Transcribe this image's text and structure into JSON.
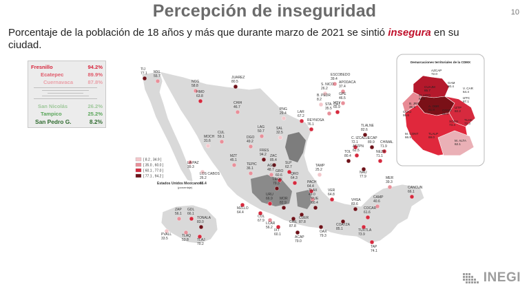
{
  "title": "Percepción de inseguridad",
  "page_number": "10",
  "subtitle": {
    "before": "Porcentaje de la población de 18 años y más que durante marzo de 2021 se sintió",
    "highlight": "insegura",
    "after": "en su",
    "line2": "ciudad."
  },
  "ranking": {
    "top": [
      {
        "city": "Fresnillo",
        "value": "94.2%",
        "color": "#d7263d"
      },
      {
        "city": "Ecatepec",
        "value": "89.9%",
        "color": "#e05a6a"
      },
      {
        "city": "Cuernavaca",
        "value": "87.8%",
        "color": "#eaa0a8"
      }
    ],
    "bottom": [
      {
        "city": "San Nicolás",
        "value": "26.2%",
        "color": "#9dc79a"
      },
      {
        "city": "Tampico",
        "value": "25.2%",
        "color": "#5aa65a"
      },
      {
        "city": "San Pedro G.",
        "value": "8.2%",
        "color": "#2f6b2f"
      }
    ]
  },
  "legend": {
    "ranges": [
      {
        "label": "[ 8.2 , 34.9 ]",
        "color": "#f3c7cb"
      },
      {
        "label": "[ 35.0 , 60.0 ]",
        "color": "#e8909a"
      },
      {
        "label": "[ 60.1 , 77.0 ]",
        "color": "#d62a3e"
      },
      {
        "label": "[ 77.1 , 94.2 ]",
        "color": "#6e1219"
      }
    ],
    "national_label": "Estados Unidos Mexicanos:",
    "national_value": "66.4",
    "national_unit": "(porcentaje)"
  },
  "cities": [
    {
      "name": "TIJ",
      "value": "77.1",
      "cls": 4
    },
    {
      "name": "MXL",
      "value": "55.7",
      "cls": 2
    },
    {
      "name": "NOG",
      "value": "58.8",
      "cls": 2
    },
    {
      "name": "HMO",
      "value": "63.8",
      "cls": 3
    },
    {
      "name": "JUAREZ",
      "value": "80.5",
      "cls": 4
    },
    {
      "name": "CHIH",
      "value": "46.7",
      "cls": 2
    },
    {
      "name": "LA PAZ",
      "value": "39.3",
      "cls": 2
    },
    {
      "name": "LOS CABOS",
      "value": "26.2",
      "cls": 1
    },
    {
      "name": "CUL",
      "value": "59.1",
      "cls": 2
    },
    {
      "name": "MOCH",
      "value": "31.6",
      "cls": 1
    },
    {
      "name": "MZT",
      "value": "45.1",
      "cls": 2
    },
    {
      "name": "DGO",
      "value": "49.2",
      "cls": 2
    },
    {
      "name": "LAG",
      "value": "50.7",
      "cls": 2
    },
    {
      "name": "FRES",
      "value": "94.2",
      "cls": 4
    },
    {
      "name": "ZAC",
      "value": "85.4",
      "cls": 4
    },
    {
      "name": "SAL",
      "value": "32.5",
      "cls": 1
    },
    {
      "name": "PNG",
      "value": "29.4",
      "cls": 1
    },
    {
      "name": "LAR",
      "value": "67.2",
      "cls": 3
    },
    {
      "name": "REYNOSA",
      "value": "76.1",
      "cls": 3
    },
    {
      "name": "ESCOBEDO",
      "value": "39.4",
      "cls": 2
    },
    {
      "name": "S. NICO",
      "value": "26.2",
      "cls": 1
    },
    {
      "name": "APODACA",
      "value": "37.4",
      "cls": 2
    },
    {
      "name": "B. PEDR",
      "value": "8.2",
      "cls": 1
    },
    {
      "name": "GPE",
      "value": "46.5",
      "cls": 2
    },
    {
      "name": "MTY",
      "value": "65.9",
      "cls": 3
    },
    {
      "name": "STA. CAT",
      "value": "35.5",
      "cls": 2
    },
    {
      "name": "TEPIC",
      "value": "36.1",
      "cls": 2
    },
    {
      "name": "AGS",
      "value": "48.7",
      "cls": 2
    },
    {
      "name": "SLP",
      "value": "62.7",
      "cls": 3
    },
    {
      "name": "TAMP",
      "value": "25.2",
      "cls": 1
    },
    {
      "name": "GRO",
      "value": "60.6",
      "cls": 3
    },
    {
      "name": "QRO",
      "value": "64.3",
      "cls": 3
    },
    {
      "name": "LEON",
      "value": "79.3",
      "cls": 4
    },
    {
      "name": "PACH",
      "value": "64.4",
      "cls": 3
    },
    {
      "name": "TLAX",
      "value": "49.0",
      "cls": 2
    },
    {
      "name": "VER",
      "value": "64.8",
      "cls": 3
    },
    {
      "name": "PUE",
      "value": "80.4",
      "cls": 4
    },
    {
      "name": "MZLLO",
      "value": "64.4",
      "cls": 3
    },
    {
      "name": "COL",
      "value": "67.9",
      "cls": 3
    },
    {
      "name": "URU",
      "value": "66.9",
      "cls": 3
    },
    {
      "name": "MOR",
      "value": "82.9",
      "cls": 4
    },
    {
      "name": "LCAR",
      "value": "56.2",
      "cls": 2
    },
    {
      "name": "IXT",
      "value": "60.1",
      "cls": 3
    },
    {
      "name": "CHIL",
      "value": "87.8",
      "cls": 4
    },
    {
      "name": "CUER",
      "value": "87.8",
      "cls": 4
    },
    {
      "name": "ACAP",
      "value": "79.0",
      "cls": 4
    },
    {
      "name": "OAX",
      "value": "79.3",
      "cls": 4
    },
    {
      "name": "VHSA",
      "value": "83.6",
      "cls": 4
    },
    {
      "name": "COATZA",
      "value": "85.1",
      "cls": 4
    },
    {
      "name": "TUXTLA",
      "value": "73.9",
      "cls": 3
    },
    {
      "name": "TAP",
      "value": "74.1",
      "cls": 3
    },
    {
      "name": "CAMP",
      "value": "40.6",
      "cls": 2
    },
    {
      "name": "COCAR",
      "value": "61.6",
      "cls": 3
    },
    {
      "name": "MER",
      "value": "39.3",
      "cls": 2
    },
    {
      "name": "CANCUN",
      "value": "66.1",
      "cls": 3
    },
    {
      "name": "ZAP",
      "value": "56.1",
      "cls": 2
    },
    {
      "name": "GDL",
      "value": "66.1",
      "cls": 3
    },
    {
      "name": "TONALA",
      "value": "83.0",
      "cls": 4
    },
    {
      "name": "TLAQ",
      "value": "53.8",
      "cls": 2
    },
    {
      "name": "TLAJ",
      "value": "70.2",
      "cls": 3
    },
    {
      "name": "PVALL",
      "value": "33.5",
      "cls": 1
    },
    {
      "name": "C. IZCALLI",
      "value": "72.1",
      "cls": 3
    },
    {
      "name": "ECAP",
      "value": "89.9",
      "cls": 4
    },
    {
      "name": "CHIMAL",
      "value": "71.9",
      "cls": 3
    },
    {
      "name": "TLALNE",
      "value": "82.6",
      "cls": 4
    },
    {
      "name": "ATZPN",
      "value": "62.5",
      "cls": 3
    },
    {
      "name": "NAU",
      "value": "77.9",
      "cls": 4
    },
    {
      "name": "NEZA",
      "value": "71.1",
      "cls": 3
    },
    {
      "name": "TOL",
      "value": "80.4",
      "cls": 4
    }
  ],
  "cdmx": {
    "title": "Demarcaciones territoriales de la CDMX",
    "items": [
      {
        "name": "AZCAP",
        "value": "72.0"
      },
      {
        "name": "CUAJM",
        "value": "85.7"
      },
      {
        "name": "GAM",
        "value": "80.4"
      },
      {
        "name": "V. CAR",
        "value": "64.4"
      },
      {
        "name": "M. HGO",
        "value": "62.6"
      },
      {
        "name": "IZTC",
        "value": "87.1"
      },
      {
        "name": "B. JRZ",
        "value": "35.9"
      },
      {
        "name": "A. OBR",
        "value": "61.8"
      },
      {
        "name": "COYO",
        "value": "55.0"
      },
      {
        "name": "IZTP",
        "value": "82.2"
      },
      {
        "name": "CUAJ",
        "value": "55.6"
      },
      {
        "name": "XOCH",
        "value": "73.4"
      },
      {
        "name": "TLHC",
        "value": "72.3"
      },
      {
        "name": "M. CONT",
        "value": "66.9"
      },
      {
        "name": "TLALP",
        "value": "69.0"
      },
      {
        "name": "M. ALTA",
        "value": "62.1"
      }
    ]
  },
  "brand": {
    "name": "INEGI"
  }
}
